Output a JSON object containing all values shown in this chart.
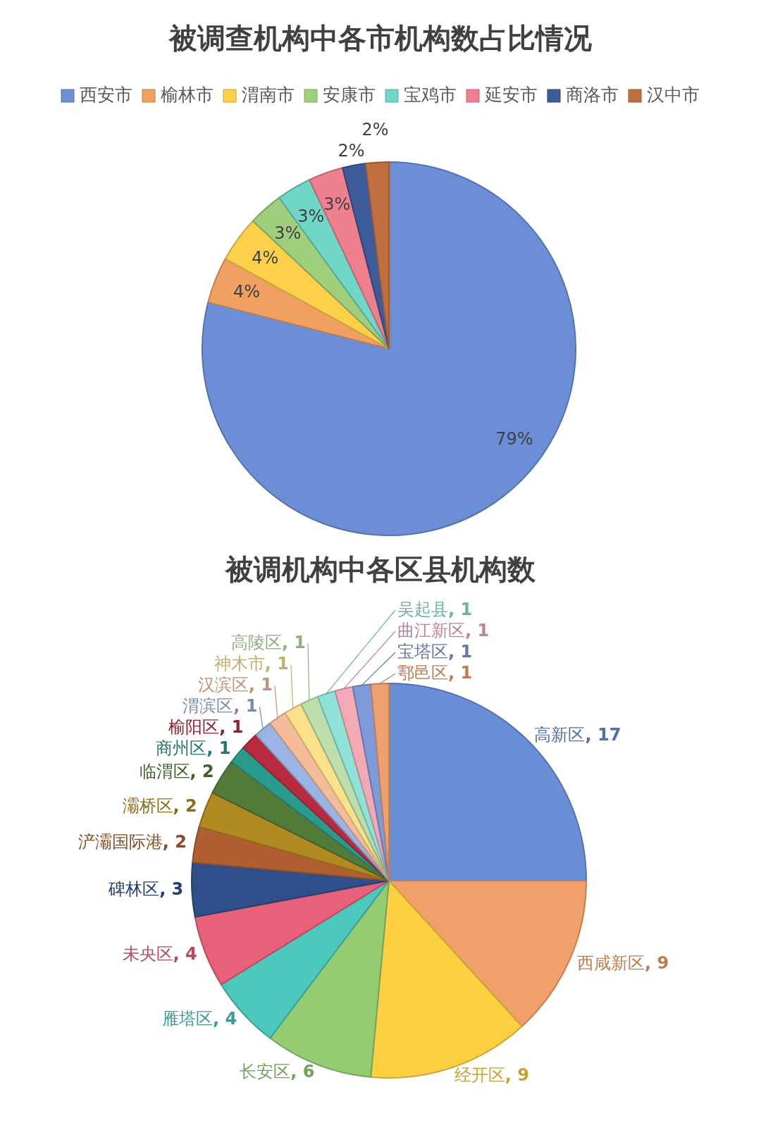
{
  "chart_data": [
    {
      "type": "pie",
      "title": "被调查机构中各市机构数占比情况",
      "legend": "top",
      "categories": [
        "西安市",
        "榆林市",
        "渭南市",
        "安康市",
        "宝鸡市",
        "延安市",
        "商洛市",
        "汉中市"
      ],
      "values": [
        79,
        4,
        4,
        3,
        3,
        3,
        2,
        2
      ],
      "value_labels": [
        "79%",
        "4%",
        "4%",
        "3%",
        "3%",
        "3%",
        "2%",
        "2%"
      ],
      "colors": [
        "#6b8ed6",
        "#f0a060",
        "#fdd04a",
        "#9fcf7d",
        "#6fd6c8",
        "#ee8090",
        "#3d5a9a",
        "#c07040"
      ]
    },
    {
      "type": "pie",
      "title": "被调机构中各区县机构数",
      "data_labels": true,
      "categories": [
        "高新区",
        "西咸新区",
        "经开区",
        "长安区",
        "雁塔区",
        "未央区",
        "碑林区",
        "浐灞国际港",
        "灞桥区",
        "临渭区",
        "商州区",
        "榆阳区",
        "渭滨区",
        "汉滨区",
        "神木市",
        "高陵区",
        "吴起县",
        "曲江新区",
        "宝塔区",
        "鄠邑区"
      ],
      "values": [
        17,
        9,
        9,
        6,
        4,
        4,
        3,
        2,
        2,
        2,
        1,
        1,
        1,
        1,
        1,
        1,
        1,
        1,
        1,
        1
      ],
      "value_labels": [
        ", 17",
        ", 9",
        ", 9",
        ", 6",
        ", 4",
        ", 4",
        ", 3",
        ", 2",
        ", 2",
        ", 2",
        ", 1",
        ", 1",
        ", 1",
        ", 1",
        ", 1",
        ", 1",
        ", 1",
        ", 1",
        ", 1",
        ", 1"
      ],
      "colors": [
        "#6a8ed6",
        "#f0a068",
        "#fcd040",
        "#94cc72",
        "#4cc8bc",
        "#e8607a",
        "#2e4f8a",
        "#b06030",
        "#b08a20",
        "#527a38",
        "#2a9a8c",
        "#b82a40",
        "#9ab4e4",
        "#f4bc98",
        "#fde08a",
        "#bddeaa",
        "#8ee2d8",
        "#f4aab6",
        "#7f9ad8",
        "#eea070"
      ]
    }
  ]
}
